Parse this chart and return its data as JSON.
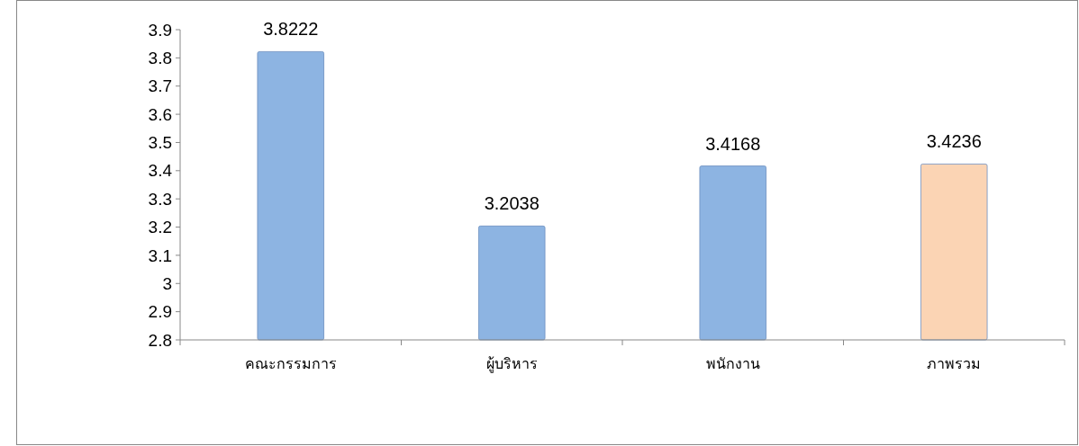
{
  "chart_data": {
    "type": "bar",
    "categories": [
      "คณะกรรมการ",
      "ผู้บริหาร",
      "พนักงาน",
      "ภาพรวม"
    ],
    "values": [
      3.8222,
      3.2038,
      3.4168,
      3.4236
    ],
    "colors": [
      "#8db4e2",
      "#8db4e2",
      "#8db4e2",
      "#fbd4b4"
    ],
    "ylim": [
      2.8,
      3.9
    ],
    "yticks": [
      2.8,
      2.9,
      3,
      3.1,
      3.2,
      3.3,
      3.4,
      3.5,
      3.6,
      3.7,
      3.8,
      3.9
    ],
    "data_labels": true
  }
}
